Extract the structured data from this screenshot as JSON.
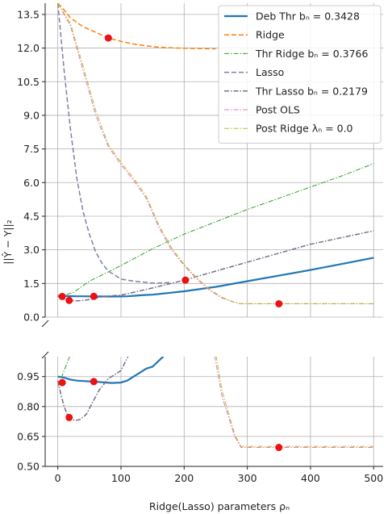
{
  "chart_data": {
    "type": "line",
    "xlabel": "Ridge(Lasso) parameters ρₙ",
    "ylabel": "||Ŷ − Y||₂",
    "xlim": [
      -20,
      515
    ],
    "xticks": [
      "0",
      "100",
      "200",
      "300",
      "400",
      "500"
    ],
    "xtick_values": [
      0,
      100,
      200,
      300,
      400,
      500
    ],
    "grid": true,
    "legend_position": "top-right",
    "panels": [
      {
        "name": "upper",
        "ylim": [
          0.0,
          14.0
        ],
        "yticks": [
          "0.0",
          "1.5",
          "3.0",
          "4.5",
          "6.0",
          "7.5",
          "9.0",
          "10.5",
          "12.0",
          "13.5"
        ],
        "ytick_values": [
          0.0,
          1.5,
          3.0,
          4.5,
          6.0,
          7.5,
          9.0,
          10.5,
          12.0,
          13.5
        ]
      },
      {
        "name": "lower",
        "ylim": [
          0.5,
          1.05
        ],
        "yticks": [
          "0.50",
          "0.65",
          "0.80",
          "0.95"
        ],
        "ytick_values": [
          0.5,
          0.65,
          0.8,
          0.95
        ]
      }
    ],
    "series": [
      {
        "name": "Deb Thr bₙ = 0.3428",
        "color": "#1f77b4",
        "style": "solid",
        "width": 2.2,
        "x": [
          0,
          10,
          20,
          30,
          40,
          55,
          70,
          85,
          100,
          110,
          120,
          130,
          140,
          150,
          200,
          250,
          300,
          350,
          400,
          450,
          500
        ],
        "y": [
          0.95,
          0.945,
          0.935,
          0.93,
          0.928,
          0.925,
          0.922,
          0.918,
          0.92,
          0.93,
          0.95,
          0.97,
          0.99,
          1.0,
          1.15,
          1.35,
          1.6,
          1.85,
          2.1,
          2.37,
          2.65
        ]
      },
      {
        "name": "Ridge",
        "color": "#ff7f0e",
        "style": "dashed",
        "width": 1.5,
        "x": [
          0,
          10,
          20,
          40,
          60,
          80,
          100,
          120,
          140,
          160,
          180,
          200,
          220,
          240,
          250
        ],
        "y": [
          14.0,
          13.7,
          13.35,
          12.95,
          12.7,
          12.45,
          12.3,
          12.18,
          12.1,
          12.04,
          12.01,
          11.99,
          11.98,
          11.97,
          11.97
        ]
      },
      {
        "name": "Thr Ridge bₙ = 0.3766",
        "color": "#2ca02c",
        "style": "dashdot",
        "width": 1.0,
        "x": [
          0,
          25,
          50,
          100,
          150,
          200,
          250,
          300,
          350,
          400,
          450,
          500
        ],
        "y": [
          0.9,
          1.1,
          1.6,
          2.3,
          3.05,
          3.7,
          4.25,
          4.8,
          5.3,
          5.8,
          6.3,
          6.85
        ]
      },
      {
        "name": "Lasso",
        "color": "#7f7fa8",
        "style": "dashed",
        "width": 1.5,
        "x": [
          0,
          5,
          10,
          20,
          30,
          40,
          50,
          60,
          70,
          80,
          100,
          120,
          140,
          150,
          160,
          170,
          180
        ],
        "y": [
          14.0,
          12.5,
          11.0,
          8.4,
          6.2,
          4.7,
          3.7,
          2.9,
          2.4,
          2.05,
          1.7,
          1.6,
          1.55,
          1.52,
          1.52,
          1.53,
          1.55
        ]
      },
      {
        "name": "Thr Lasso bₙ = 0.2179",
        "color": "#7a6a8a",
        "style": "dashdot",
        "width": 1.5,
        "x": [
          0,
          5,
          10,
          15,
          18,
          22,
          28,
          35,
          45,
          55,
          65,
          80,
          100,
          150,
          200,
          250,
          300,
          350,
          400,
          450,
          500
        ],
        "y": [
          0.93,
          0.86,
          0.8,
          0.76,
          0.745,
          0.735,
          0.73,
          0.735,
          0.76,
          0.82,
          0.88,
          0.94,
          0.98,
          1.3,
          1.65,
          2.05,
          2.45,
          2.85,
          3.25,
          3.55,
          3.85
        ]
      },
      {
        "name": "Post OLS",
        "color": "#e377c2",
        "style": "dashdot",
        "width": 1.0,
        "x": [
          0,
          20,
          40,
          60,
          80,
          100,
          120,
          140,
          160,
          180,
          200,
          220,
          240,
          260,
          280,
          290,
          300,
          350,
          400,
          450,
          500
        ],
        "y": [
          14.0,
          13.0,
          11.0,
          9.0,
          7.6,
          6.8,
          6.1,
          5.3,
          4.0,
          3.0,
          2.3,
          1.7,
          1.2,
          0.85,
          0.65,
          0.595,
          0.595,
          0.595,
          0.595,
          0.595,
          0.595
        ]
      },
      {
        "name": "Post Ridge λₙ = 0.0",
        "color": "#bcbd22",
        "style": "dashdot",
        "width": 1.0,
        "x": [
          0,
          20,
          40,
          60,
          80,
          100,
          120,
          140,
          160,
          180,
          200,
          220,
          240,
          260,
          280,
          290,
          300,
          350,
          400,
          450,
          500
        ],
        "y": [
          14.0,
          13.1,
          11.2,
          9.2,
          7.7,
          6.9,
          6.2,
          5.4,
          4.1,
          3.1,
          2.35,
          1.75,
          1.25,
          0.88,
          0.66,
          0.6,
          0.6,
          0.6,
          0.6,
          0.6,
          0.6
        ]
      }
    ],
    "markers": {
      "color": "#ee1111",
      "points": [
        {
          "x": 80,
          "y": 12.45
        },
        {
          "x": 7,
          "y": 0.92
        },
        {
          "x": 18,
          "y": 0.745
        },
        {
          "x": 57,
          "y": 0.925
        },
        {
          "x": 202,
          "y": 1.65
        },
        {
          "x": 350,
          "y": 0.595
        }
      ]
    }
  }
}
